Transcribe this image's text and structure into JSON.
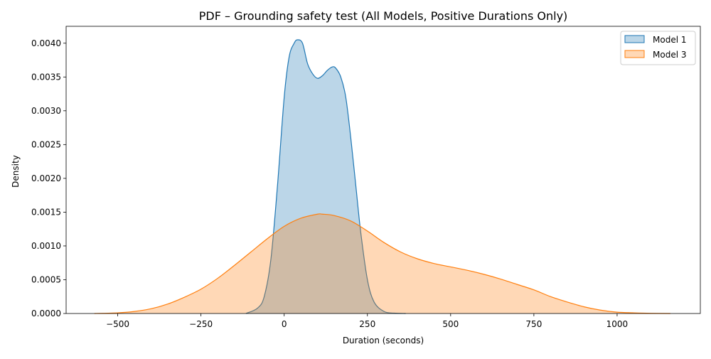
{
  "chart_data": {
    "type": "area",
    "title": "PDF – Grounding safety test (All Models, Positive Durations Only)",
    "xlabel": "Duration (seconds)",
    "ylabel": "Density",
    "xlim": [
      -655,
      1250
    ],
    "ylim": [
      0,
      0.00425
    ],
    "x_ticks": [
      -500,
      -250,
      0,
      250,
      500,
      750,
      1000
    ],
    "x_tick_labels": [
      "−500",
      "−250",
      "0",
      "250",
      "500",
      "750",
      "1000"
    ],
    "y_ticks": [
      0,
      0.0005,
      0.001,
      0.0015,
      0.002,
      0.0025,
      0.003,
      0.0035,
      0.004
    ],
    "y_tick_labels": [
      "0.0000",
      "0.0005",
      "0.0010",
      "0.0015",
      "0.0020",
      "0.0025",
      "0.0030",
      "0.0035",
      "0.0040"
    ],
    "grid": false,
    "legend_position": "top-right",
    "series": [
      {
        "name": "Model 1",
        "color": "#1f77b4",
        "fill_opacity": 0.3,
        "x": [
          -115,
          -80,
          -60,
          -40,
          -20,
          0,
          15,
          30,
          40,
          55,
          70,
          85,
          100,
          115,
          130,
          145,
          155,
          170,
          185,
          200,
          215,
          230,
          250,
          270,
          300,
          330,
          365
        ],
        "y": [
          0.0,
          8e-05,
          0.00025,
          0.0008,
          0.0019,
          0.0032,
          0.0038,
          0.004,
          0.00405,
          0.004,
          0.0037,
          0.00355,
          0.00348,
          0.00352,
          0.0036,
          0.00365,
          0.00363,
          0.0035,
          0.0032,
          0.0026,
          0.0019,
          0.0012,
          0.0005,
          0.00017,
          3e-05,
          5e-06,
          0.0
        ]
      },
      {
        "name": "Model 3",
        "color": "#ff7f0e",
        "fill_opacity": 0.3,
        "x": [
          -570,
          -500,
          -450,
          -400,
          -350,
          -300,
          -250,
          -200,
          -150,
          -100,
          -50,
          0,
          50,
          100,
          115,
          150,
          200,
          250,
          300,
          350,
          400,
          450,
          500,
          550,
          600,
          650,
          700,
          750,
          800,
          850,
          900,
          950,
          1000,
          1050,
          1100,
          1160
        ],
        "y": [
          0.0,
          1e-05,
          3e-05,
          7e-05,
          0.00014,
          0.00024,
          0.00036,
          0.00052,
          0.00071,
          0.00091,
          0.00111,
          0.00129,
          0.00141,
          0.00147,
          0.00147,
          0.00145,
          0.00137,
          0.00122,
          0.00105,
          0.00091,
          0.00081,
          0.00074,
          0.00069,
          0.00064,
          0.00058,
          0.00051,
          0.00043,
          0.00035,
          0.00025,
          0.00017,
          0.0001,
          5e-05,
          2e-05,
          1e-05,
          3e-06,
          0.0
        ]
      }
    ]
  }
}
